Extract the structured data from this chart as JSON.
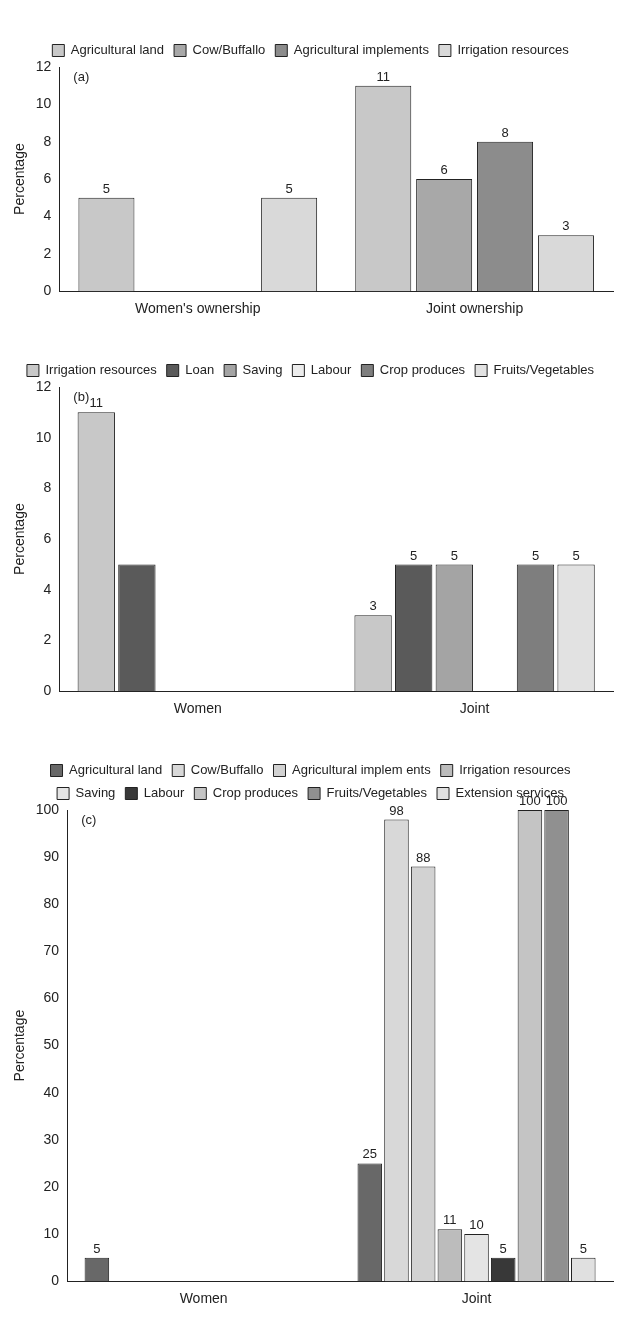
{
  "chart_data": [
    {
      "type": "bar",
      "categories": [
        "Women's ownership",
        "Joint ownership"
      ],
      "ylabel": "Percentage",
      "ylim": [
        0,
        12
      ],
      "yticks": [
        0,
        2,
        4,
        6,
        8,
        10,
        12
      ],
      "grid": false,
      "legend": "top",
      "annotations": [
        "(a)"
      ],
      "series": [
        {
          "name": "Agricultural land",
          "color": "#c8c8c8",
          "values": [
            5,
            11
          ],
          "value_labels": [
            "5",
            "11"
          ]
        },
        {
          "name": "Cow/Buffallo",
          "color": "#a8a8a8",
          "values": [
            null,
            6
          ],
          "value_labels": [
            null,
            "6"
          ]
        },
        {
          "name": "Agricultural implements",
          "color": "#8c8c8c",
          "values": [
            null,
            8
          ],
          "value_labels": [
            null,
            "8"
          ]
        },
        {
          "name": "Irrigation resources",
          "color": "#d9d9d9",
          "values": [
            5,
            3
          ],
          "value_labels": [
            "5",
            "3"
          ]
        }
      ]
    },
    {
      "type": "bar",
      "categories": [
        "Women",
        "Joint"
      ],
      "ylabel": "Percentage",
      "ylim": [
        0,
        12
      ],
      "yticks": [
        0,
        2,
        4,
        6,
        8,
        10,
        12
      ],
      "grid": false,
      "legend": "top",
      "annotations": [
        "(b)"
      ],
      "series": [
        {
          "name": "Irrigation resources",
          "color": "#c8c8c8",
          "values": [
            11,
            3
          ],
          "value_labels": [
            "11",
            "3"
          ]
        },
        {
          "name": "Loan",
          "color": "#5a5a5a",
          "values": [
            5,
            5
          ],
          "value_labels": [
            null,
            "5"
          ]
        },
        {
          "name": "Saving",
          "color": "#a4a4a4",
          "values": [
            null,
            5
          ],
          "value_labels": [
            null,
            "5"
          ]
        },
        {
          "name": "Labour",
          "color": "#ececec",
          "values": [
            null,
            null
          ]
        },
        {
          "name": "Crop produces",
          "color": "#7e7e7e",
          "values": [
            null,
            5
          ],
          "value_labels": [
            null,
            "5"
          ]
        },
        {
          "name": "Fruits/Vegetables",
          "color": "#e2e2e2",
          "values": [
            null,
            5
          ],
          "value_labels": [
            null,
            "5"
          ]
        }
      ]
    },
    {
      "type": "bar",
      "categories": [
        "Women",
        "Joint"
      ],
      "ylabel": "Percentage",
      "ylim": [
        0,
        100
      ],
      "yticks": [
        0,
        10,
        20,
        30,
        40,
        50,
        60,
        70,
        80,
        90,
        100
      ],
      "grid": false,
      "legend": "top",
      "annotations": [
        "(c)"
      ],
      "series": [
        {
          "name": "Agricultural land",
          "color": "#686868",
          "values": [
            5,
            25
          ],
          "value_labels": [
            "5",
            "25"
          ]
        },
        {
          "name": "Cow/Buffallo",
          "color": "#d8d8d8",
          "values": [
            null,
            98
          ],
          "value_labels": [
            null,
            "98"
          ]
        },
        {
          "name": "Agricultural implem ents",
          "color": "#d2d2d2",
          "values": [
            null,
            88
          ],
          "value_labels": [
            null,
            "88"
          ]
        },
        {
          "name": "Irrigation resources",
          "color": "#bcbcbc",
          "values": [
            null,
            11
          ],
          "value_labels": [
            null,
            "11"
          ]
        },
        {
          "name": "Saving",
          "color": "#e4e4e4",
          "values": [
            null,
            10
          ],
          "value_labels": [
            null,
            "10"
          ]
        },
        {
          "name": "Labour",
          "color": "#383838",
          "values": [
            null,
            5
          ],
          "value_labels": [
            null,
            "5"
          ]
        },
        {
          "name": "Crop produces",
          "color": "#c4c4c4",
          "values": [
            null,
            100
          ],
          "value_labels": [
            null,
            "100"
          ]
        },
        {
          "name": "Fruits/Vegetables",
          "color": "#909090",
          "values": [
            null,
            100
          ],
          "value_labels": [
            null,
            "100"
          ]
        },
        {
          "name": "Extension services",
          "color": "#e0e0e0",
          "values": [
            null,
            5
          ],
          "value_labels": [
            null,
            "5"
          ]
        }
      ]
    }
  ]
}
